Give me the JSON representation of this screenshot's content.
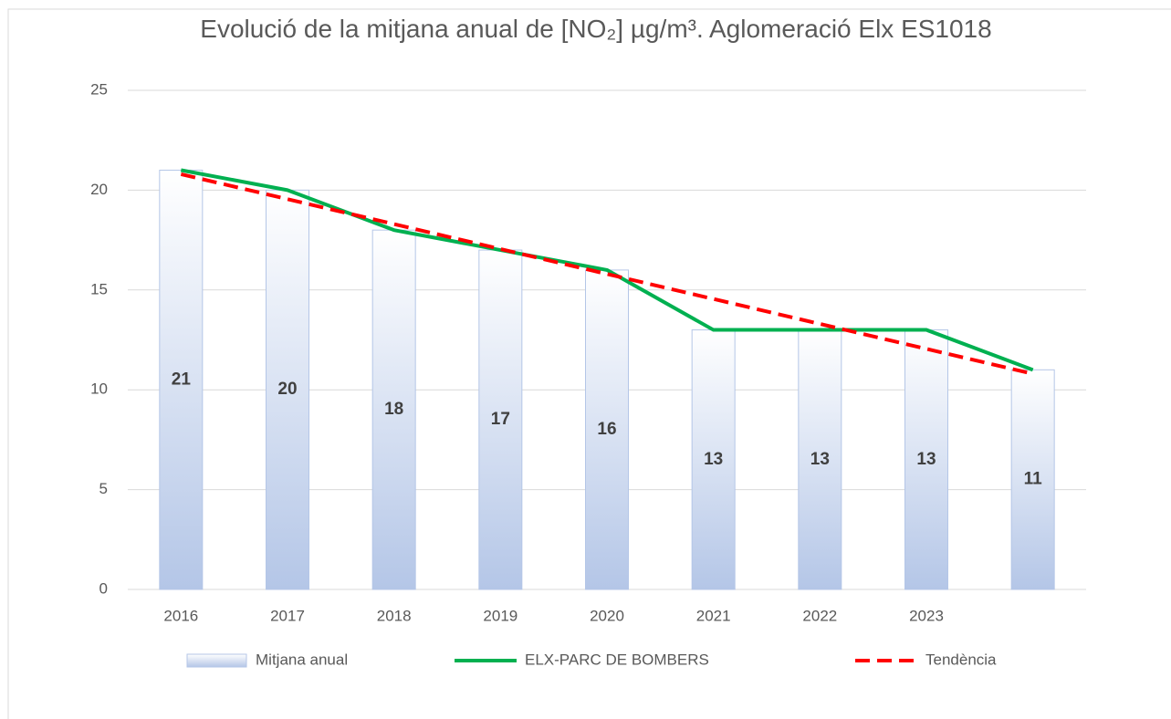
{
  "chart_data": {
    "type": "bar",
    "title": "Evolució de la mitjana anual de [NO₂] µg/m³. Aglomeració Elx ES1018",
    "categories": [
      "2016",
      "2017",
      "2018",
      "2019",
      "2020",
      "2021",
      "2022",
      "2023",
      null
    ],
    "series": [
      {
        "name": "Mitjana anual",
        "type": "bar",
        "color": "#b4c6e7",
        "values": [
          21,
          20,
          18,
          17,
          16,
          13,
          13,
          13,
          11
        ]
      },
      {
        "name": "ELX-PARC DE BOMBERS",
        "type": "line",
        "color": "#00b050",
        "values": [
          21,
          20,
          18,
          17,
          16,
          13,
          13,
          13,
          11
        ]
      },
      {
        "name": "Tendència",
        "type": "line",
        "dashed": true,
        "color": "#ff0000",
        "values": [
          20.8,
          19.55,
          18.3,
          17.05,
          15.8,
          14.55,
          13.3,
          12.05,
          10.8
        ]
      }
    ],
    "ylim": [
      0,
      25
    ],
    "yticks": [
      0,
      5,
      10,
      15,
      20,
      25
    ],
    "grid": true,
    "legend": "bottom"
  }
}
